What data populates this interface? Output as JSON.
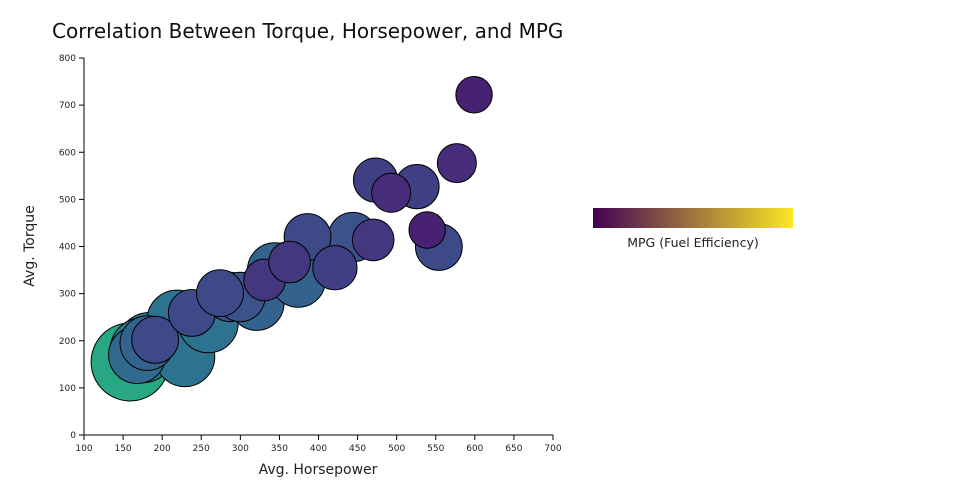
{
  "chart_data": {
    "type": "scatter",
    "title": "Correlation Between Torque, Horsepower, and MPG",
    "xlabel": "Avg. Horsepower",
    "ylabel": "Avg. Torque",
    "xlim": [
      100,
      700
    ],
    "ylim": [
      0,
      800
    ],
    "xticks": [
      100,
      150,
      200,
      250,
      300,
      350,
      400,
      450,
      500,
      550,
      600,
      650,
      700
    ],
    "yticks": [
      0,
      100,
      200,
      300,
      400,
      500,
      600,
      700,
      800
    ],
    "size_and_color": "MPG",
    "colorbar_label": "MPG (Fuel Efficiency)",
    "colorbar_colors": [
      "#440154",
      "#fde725"
    ],
    "points": [
      {
        "x": 159,
        "y": 155,
        "mpg": 30
      },
      {
        "x": 184,
        "y": 191,
        "mpg": 25
      },
      {
        "x": 175,
        "y": 180,
        "mpg": 25
      },
      {
        "x": 168,
        "y": 170,
        "mpg": 22
      },
      {
        "x": 181,
        "y": 195,
        "mpg": 21
      },
      {
        "x": 191,
        "y": 202,
        "mpg": 18
      },
      {
        "x": 219,
        "y": 244,
        "mpg": 23
      },
      {
        "x": 238,
        "y": 259,
        "mpg": 18
      },
      {
        "x": 229,
        "y": 166,
        "mpg": 23
      },
      {
        "x": 259,
        "y": 238,
        "mpg": 23
      },
      {
        "x": 274,
        "y": 301,
        "mpg": 18
      },
      {
        "x": 287,
        "y": 293,
        "mpg": 19
      },
      {
        "x": 300,
        "y": 293,
        "mpg": 19
      },
      {
        "x": 321,
        "y": 280,
        "mpg": 21
      },
      {
        "x": 331,
        "y": 329,
        "mpg": 16
      },
      {
        "x": 363,
        "y": 367,
        "mpg": 16
      },
      {
        "x": 344,
        "y": 350,
        "mpg": 21
      },
      {
        "x": 374,
        "y": 329,
        "mpg": 21
      },
      {
        "x": 421,
        "y": 355,
        "mpg": 17
      },
      {
        "x": 386,
        "y": 420,
        "mpg": 18
      },
      {
        "x": 444,
        "y": 420,
        "mpg": 19
      },
      {
        "x": 470,
        "y": 414,
        "mpg": 16
      },
      {
        "x": 473,
        "y": 541,
        "mpg": 17
      },
      {
        "x": 493,
        "y": 514,
        "mpg": 15
      },
      {
        "x": 526,
        "y": 527,
        "mpg": 17
      },
      {
        "x": 539,
        "y": 435,
        "mpg": 14
      },
      {
        "x": 554,
        "y": 399,
        "mpg": 18
      },
      {
        "x": 577,
        "y": 577,
        "mpg": 15
      },
      {
        "x": 599,
        "y": 722,
        "mpg": 14
      }
    ]
  }
}
